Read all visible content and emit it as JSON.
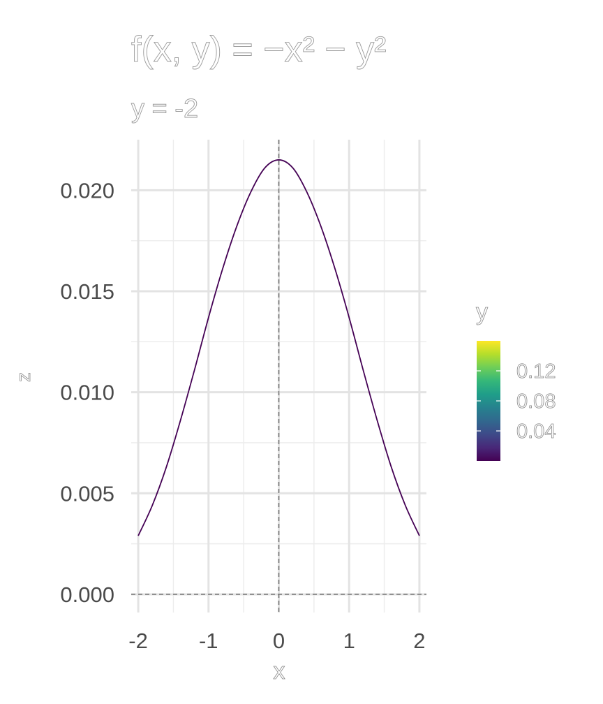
{
  "chart_data": {
    "type": "line",
    "title": "f(x, y) = −x² − y²",
    "subtitle": "y = -2",
    "xlabel": "x",
    "ylabel": "z",
    "xlim": [
      -2.1,
      2.1
    ],
    "ylim": [
      -0.0009,
      0.0225
    ],
    "x_ticks": [
      -2,
      -1,
      0,
      1,
      2
    ],
    "x_tick_labels": [
      "-2",
      "-1",
      "0",
      "1",
      "2"
    ],
    "y_ticks": [
      0,
      0.005,
      0.01,
      0.015,
      0.02
    ],
    "y_tick_labels": [
      "0.000",
      "0.005",
      "0.010",
      "0.015",
      "0.020"
    ],
    "grid": true,
    "reference_lines": {
      "vertical_x": 0,
      "horizontal_y": 0,
      "style": "dashed"
    },
    "series": [
      {
        "color": "#440154",
        "x": [
          -2,
          -1.8,
          -1.6,
          -1.4,
          -1.2,
          -1,
          -0.8,
          -0.6,
          -0.4,
          -0.2,
          0,
          0.2,
          0.4,
          0.6,
          0.8,
          1,
          1.2,
          1.4,
          1.6,
          1.8,
          2
        ],
        "y": [
          0.0029,
          0.0044,
          0.0063,
          0.0086,
          0.0111,
          0.0137,
          0.0161,
          0.0182,
          0.0199,
          0.0211,
          0.0215,
          0.0211,
          0.0199,
          0.0182,
          0.0161,
          0.0137,
          0.0111,
          0.0086,
          0.0063,
          0.0044,
          0.0029
        ]
      }
    ],
    "legend": {
      "title": "y",
      "placement": "right",
      "type": "colorbar",
      "range": [
        0,
        0.16
      ],
      "breaks": [
        0.04,
        0.08,
        0.12
      ],
      "break_labels": [
        "0.04",
        "0.08",
        "0.12"
      ],
      "colors": [
        "#440154",
        "#482878",
        "#3e4a89",
        "#31688e",
        "#26828e",
        "#1f9e89",
        "#35b779",
        "#6ece58",
        "#b5de2b",
        "#fde725"
      ]
    }
  }
}
